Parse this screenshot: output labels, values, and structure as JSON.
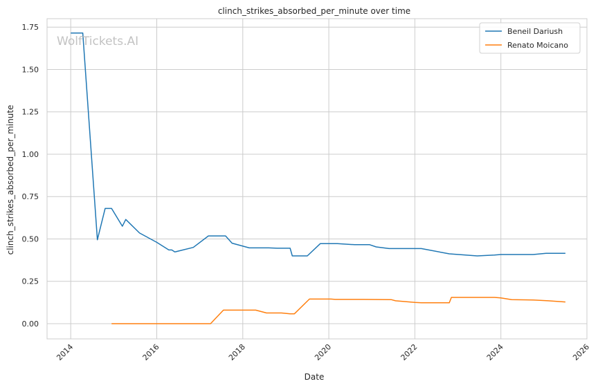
{
  "chart_data": {
    "type": "line",
    "title": "clinch_strikes_absorbed_per_minute over time",
    "xlabel": "Date",
    "ylabel": "clinch_strikes_absorbed_per_minute",
    "watermark": "WolfTickets.AI",
    "xlim": [
      2013.45,
      2026.0
    ],
    "ylim": [
      -0.09,
      1.8
    ],
    "xticks": [
      2014,
      2016,
      2018,
      2020,
      2022,
      2024,
      2026
    ],
    "xtick_labels": [
      "2014",
      "2016",
      "2018",
      "2020",
      "2022",
      "2024",
      "2026"
    ],
    "yticks": [
      0.0,
      0.25,
      0.5,
      0.75,
      1.0,
      1.25,
      1.5,
      1.75
    ],
    "ytick_labels": [
      "0.00",
      "0.25",
      "0.50",
      "0.75",
      "1.00",
      "1.25",
      "1.50",
      "1.75"
    ],
    "grid": true,
    "legend_position": "top-right",
    "series": [
      {
        "name": "Beneil Dariush",
        "color": "#1f77b4",
        "x": [
          2014.0,
          2014.28,
          2014.62,
          2014.8,
          2014.95,
          2015.2,
          2015.28,
          2015.6,
          2016.0,
          2016.28,
          2016.35,
          2016.42,
          2016.85,
          2017.2,
          2017.6,
          2017.75,
          2018.15,
          2018.6,
          2018.8,
          2019.1,
          2019.15,
          2019.5,
          2019.8,
          2020.2,
          2020.6,
          2020.95,
          2021.1,
          2021.4,
          2022.15,
          2022.8,
          2023.45,
          2023.85,
          2024.0,
          2024.75,
          2025.05,
          2025.5
        ],
        "y": [
          1.715,
          1.715,
          0.495,
          0.68,
          0.68,
          0.575,
          0.615,
          0.535,
          0.48,
          0.435,
          0.435,
          0.423,
          0.45,
          0.518,
          0.518,
          0.475,
          0.447,
          0.447,
          0.445,
          0.445,
          0.4,
          0.4,
          0.472,
          0.472,
          0.466,
          0.466,
          0.453,
          0.443,
          0.443,
          0.412,
          0.4,
          0.405,
          0.408,
          0.408,
          0.415,
          0.415
        ]
      },
      {
        "name": "Renato Moicano",
        "color": "#ff7f0e",
        "x": [
          2014.95,
          2017.25,
          2017.55,
          2018.3,
          2018.55,
          2018.9,
          2019.1,
          2019.2,
          2019.55,
          2020.05,
          2020.15,
          2020.8,
          2021.45,
          2021.55,
          2022.0,
          2022.15,
          2022.8,
          2022.85,
          2023.85,
          2024.0,
          2024.25,
          2024.75,
          2025.1,
          2025.5
        ],
        "y": [
          0.0,
          0.0,
          0.08,
          0.08,
          0.063,
          0.063,
          0.058,
          0.058,
          0.145,
          0.145,
          0.143,
          0.143,
          0.142,
          0.135,
          0.125,
          0.123,
          0.123,
          0.155,
          0.155,
          0.152,
          0.142,
          0.14,
          0.135,
          0.128
        ]
      }
    ]
  }
}
